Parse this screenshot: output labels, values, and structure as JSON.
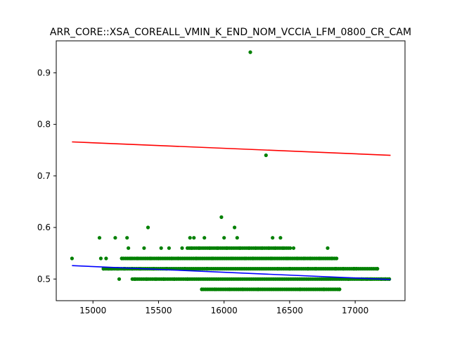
{
  "chart_data": {
    "type": "scatter",
    "title": "ARR_CORE::XSA_COREALL_VMIN_K_END_NOM_VCCIA_LFM_0800_CR_CAM",
    "xlabel": "",
    "ylabel": "",
    "xlim": [
      14720,
      17380
    ],
    "ylim": [
      0.458,
      0.962
    ],
    "xticks": [
      15000,
      15500,
      16000,
      16500,
      17000
    ],
    "yticks": [
      0.5,
      0.6,
      0.7,
      0.8,
      0.9
    ],
    "xtick_labels": [
      "15000",
      "15500",
      "16000",
      "16500",
      "17000"
    ],
    "ytick_labels": [
      "0.5",
      "0.6",
      "0.7",
      "0.8",
      "0.9"
    ],
    "grid": false,
    "legend": "none",
    "colors": {
      "points": "#008000",
      "upper_line": "#ff0000",
      "lower_line": "#0000ff",
      "axes": "#000000"
    },
    "series": [
      {
        "kind": "scatter",
        "color": "#008000",
        "points": [
          [
            14840,
            0.54
          ],
          [
            15050,
            0.58
          ],
          [
            15060,
            0.54
          ],
          [
            15080,
            0.52
          ],
          [
            15100,
            0.54
          ],
          [
            15120,
            0.52
          ],
          [
            15140,
            0.52
          ],
          [
            15170,
            0.58
          ],
          [
            15190,
            0.52
          ],
          [
            15200,
            0.5
          ],
          [
            15220,
            0.54
          ],
          [
            15240,
            0.52
          ],
          [
            15260,
            0.58
          ],
          [
            15270,
            0.56
          ],
          [
            15290,
            0.54
          ],
          [
            15300,
            0.52
          ],
          [
            15320,
            0.5
          ],
          [
            15340,
            0.54
          ],
          [
            15360,
            0.52
          ],
          [
            15390,
            0.56
          ],
          [
            15410,
            0.5
          ],
          [
            15420,
            0.6
          ],
          [
            15440,
            0.54
          ],
          [
            15460,
            0.52
          ],
          [
            15480,
            0.5
          ],
          [
            15500,
            0.54
          ],
          [
            15520,
            0.56
          ],
          [
            15540,
            0.5
          ],
          [
            15560,
            0.52
          ],
          [
            15580,
            0.56
          ],
          [
            15600,
            0.54
          ],
          [
            15620,
            0.5
          ],
          [
            15650,
            0.54
          ],
          [
            15680,
            0.56
          ],
          [
            15700,
            0.52
          ],
          [
            15720,
            0.5
          ],
          [
            15740,
            0.58
          ],
          [
            15750,
            0.56
          ],
          [
            15770,
            0.58
          ],
          [
            15790,
            0.54
          ],
          [
            15810,
            0.56
          ],
          [
            15830,
            0.48
          ],
          [
            15850,
            0.58
          ],
          [
            15870,
            0.52
          ],
          [
            15890,
            0.56
          ],
          [
            15910,
            0.54
          ],
          [
            15930,
            0.48
          ],
          [
            15950,
            0.56
          ],
          [
            15980,
            0.62
          ],
          [
            16000,
            0.58
          ],
          [
            16020,
            0.56
          ],
          [
            16040,
            0.48
          ],
          [
            16060,
            0.54
          ],
          [
            16080,
            0.6
          ],
          [
            16100,
            0.58
          ],
          [
            16120,
            0.56
          ],
          [
            16140,
            0.48
          ],
          [
            16160,
            0.54
          ],
          [
            16190,
            0.56
          ],
          [
            16200,
            0.94
          ],
          [
            16220,
            0.54
          ],
          [
            16240,
            0.56
          ],
          [
            16260,
            0.48
          ],
          [
            16290,
            0.56
          ],
          [
            16320,
            0.74
          ],
          [
            16340,
            0.56
          ],
          [
            16360,
            0.54
          ],
          [
            16370,
            0.58
          ],
          [
            16390,
            0.56
          ],
          [
            16410,
            0.52
          ],
          [
            16430,
            0.58
          ],
          [
            16450,
            0.56
          ],
          [
            16480,
            0.54
          ],
          [
            16500,
            0.52
          ],
          [
            16530,
            0.56
          ],
          [
            16560,
            0.54
          ],
          [
            16580,
            0.48
          ],
          [
            16610,
            0.54
          ],
          [
            16640,
            0.52
          ],
          [
            16660,
            0.54
          ],
          [
            16700,
            0.52
          ],
          [
            16730,
            0.54
          ],
          [
            16760,
            0.48
          ],
          [
            16790,
            0.56
          ],
          [
            16820,
            0.54
          ],
          [
            16850,
            0.52
          ],
          [
            16880,
            0.48
          ],
          [
            16910,
            0.52
          ],
          [
            16950,
            0.5
          ],
          [
            16990,
            0.52
          ],
          [
            17010,
            0.52
          ],
          [
            17050,
            0.5
          ],
          [
            17090,
            0.5
          ],
          [
            17120,
            0.5
          ],
          [
            17170,
            0.52
          ],
          [
            17200,
            0.5
          ],
          [
            17230,
            0.5
          ],
          [
            17260,
            0.5
          ]
        ],
        "bands": [
          {
            "y": 0.5,
            "x_from": 15300,
            "x_to": 17270
          },
          {
            "y": 0.52,
            "x_from": 15080,
            "x_to": 17170
          },
          {
            "y": 0.54,
            "x_from": 15220,
            "x_to": 16860
          },
          {
            "y": 0.56,
            "x_from": 15720,
            "x_to": 16510
          },
          {
            "y": 0.48,
            "x_from": 15830,
            "x_to": 16880
          }
        ]
      },
      {
        "kind": "line",
        "color": "#ff0000",
        "x": [
          14840,
          17270
        ],
        "y": [
          0.766,
          0.74
        ]
      },
      {
        "kind": "line",
        "color": "#0000ff",
        "x": [
          14840,
          17270
        ],
        "y": [
          0.526,
          0.499
        ]
      }
    ]
  }
}
